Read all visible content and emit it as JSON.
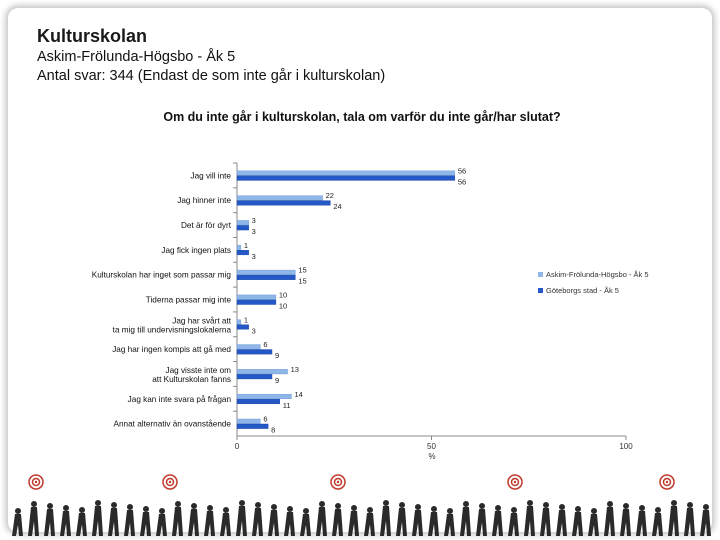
{
  "header": {
    "title": "Kulturskolan",
    "subtitle1": "Askim-Frölunda-Högsbo - Åk 5",
    "subtitle2": "Antal svar: 344 (Endast de som inte går i kulturskolan)"
  },
  "colors": {
    "series1": "#8fb6e8",
    "series2": "#2458c6",
    "axis": "#888888",
    "text": "#111111"
  },
  "chart_data": {
    "type": "bar",
    "orientation": "horizontal",
    "title": "Om du inte går i kulturskolan, tala om varför du inte går/har slutat?",
    "xlabel": "%",
    "xlim": [
      0,
      100
    ],
    "xticks": [
      0,
      50,
      100
    ],
    "legend_position": "right",
    "categories": [
      "Jag vill inte",
      "Jag hinner inte",
      "Det är för dyrt",
      "Jag fick ingen plats",
      "Kulturskolan har inget som passar mig",
      "Tiderna passar mig inte",
      "Jag har svårt att ta mig till undervisningslokalerna",
      "Jag har ingen kompis att gå med",
      "Jag visste inte om att Kulturskolan fanns",
      "Jag kan inte svara på frågan",
      "Annat alternativ än ovanstående"
    ],
    "series": [
      {
        "name": "Askim-Frölunda-Högsbo - Åk 5",
        "values": [
          56,
          22,
          3,
          1,
          15,
          10,
          1,
          6,
          13,
          14,
          6
        ]
      },
      {
        "name": "Göteborgs stad - Åk 5",
        "values": [
          56,
          24,
          3,
          3,
          15,
          10,
          3,
          9,
          9,
          11,
          8
        ]
      }
    ]
  }
}
